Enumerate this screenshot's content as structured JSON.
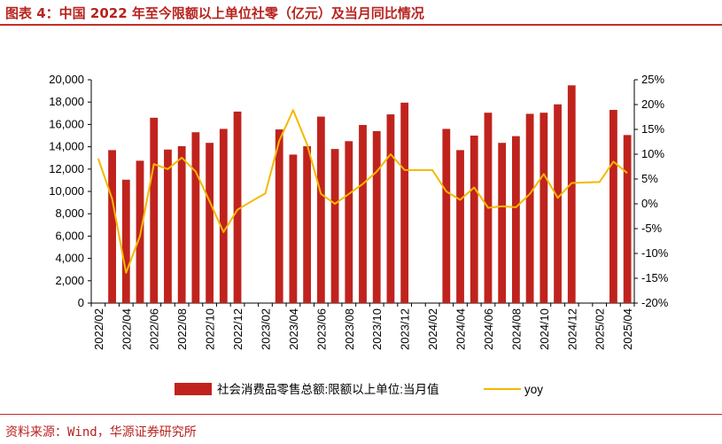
{
  "figure": {
    "title": "图表 4：中国 2022 年至今限额以上单位社零（亿元）及当月同比情况",
    "source": "资料来源：Wind，华源证券研究所"
  },
  "colors": {
    "bar": "#c0231d",
    "line": "#f5b800",
    "accent": "#b8231f"
  },
  "chart_data": {
    "type": "bar",
    "title": "",
    "xlabel": "",
    "ylabel": "",
    "ylim": [
      0,
      20000
    ],
    "y2lim": [
      -20,
      25
    ],
    "y_ticks": [
      "0",
      "2,000",
      "4,000",
      "6,000",
      "8,000",
      "10,000",
      "12,000",
      "14,000",
      "16,000",
      "18,000",
      "20,000"
    ],
    "y2_ticks": [
      "-20%",
      "-15%",
      "-10%",
      "-5%",
      "0%",
      "5%",
      "10%",
      "15%",
      "20%",
      "25%"
    ],
    "tick_labels": [
      "2022/02",
      "2022/04",
      "2022/06",
      "2022/08",
      "2022/10",
      "2022/12",
      "2023/02",
      "2023/04",
      "2023/06",
      "2023/08",
      "2023/10",
      "2023/12",
      "2024/02",
      "2024/04",
      "2024/06",
      "2024/08",
      "2024/10",
      "2024/12",
      "2025/02",
      "2025/04"
    ],
    "legend_position": "bottom",
    "categories": [
      "2022/02",
      "2022/03",
      "2022/04",
      "2022/05",
      "2022/06",
      "2022/07",
      "2022/08",
      "2022/09",
      "2022/10",
      "2022/11",
      "2022/12",
      "2023/01",
      "2023/02",
      "2023/03",
      "2023/04",
      "2023/05",
      "2023/06",
      "2023/07",
      "2023/08",
      "2023/09",
      "2023/10",
      "2023/11",
      "2023/12",
      "2024/01",
      "2024/02",
      "2024/03",
      "2024/04",
      "2024/05",
      "2024/06",
      "2024/07",
      "2024/08",
      "2024/09",
      "2024/10",
      "2024/11",
      "2024/12",
      "2025/01",
      "2025/02",
      "2025/03",
      "2025/04"
    ],
    "series": [
      {
        "name": "社会消费品零售总额:限额以上单位:当月值",
        "type": "bar",
        "axis": "left",
        "values": [
          null,
          13700,
          11050,
          12750,
          16600,
          13750,
          14050,
          15300,
          14350,
          15600,
          17150,
          null,
          null,
          15550,
          13300,
          14050,
          16700,
          13800,
          14500,
          15950,
          15400,
          16900,
          17950,
          null,
          null,
          15600,
          13700,
          15000,
          17050,
          14350,
          14950,
          16950,
          17050,
          17800,
          19500,
          null,
          null,
          17300,
          15050
        ]
      },
      {
        "name": "yoy",
        "type": "line",
        "axis": "right",
        "values": [
          9.1,
          1.0,
          -13.9,
          -6.5,
          8.0,
          7.0,
          9.3,
          6.5,
          0.5,
          -5.7,
          -1.2,
          0.5,
          2.1,
          12.7,
          18.9,
          12.0,
          2.0,
          0.0,
          2.0,
          4.0,
          6.5,
          10.0,
          6.8,
          6.8,
          6.8,
          2.5,
          0.8,
          3.3,
          -0.8,
          -0.5,
          -0.7,
          2.0,
          6.0,
          1.2,
          4.2,
          4.3,
          4.4,
          8.5,
          6.2
        ]
      }
    ]
  }
}
